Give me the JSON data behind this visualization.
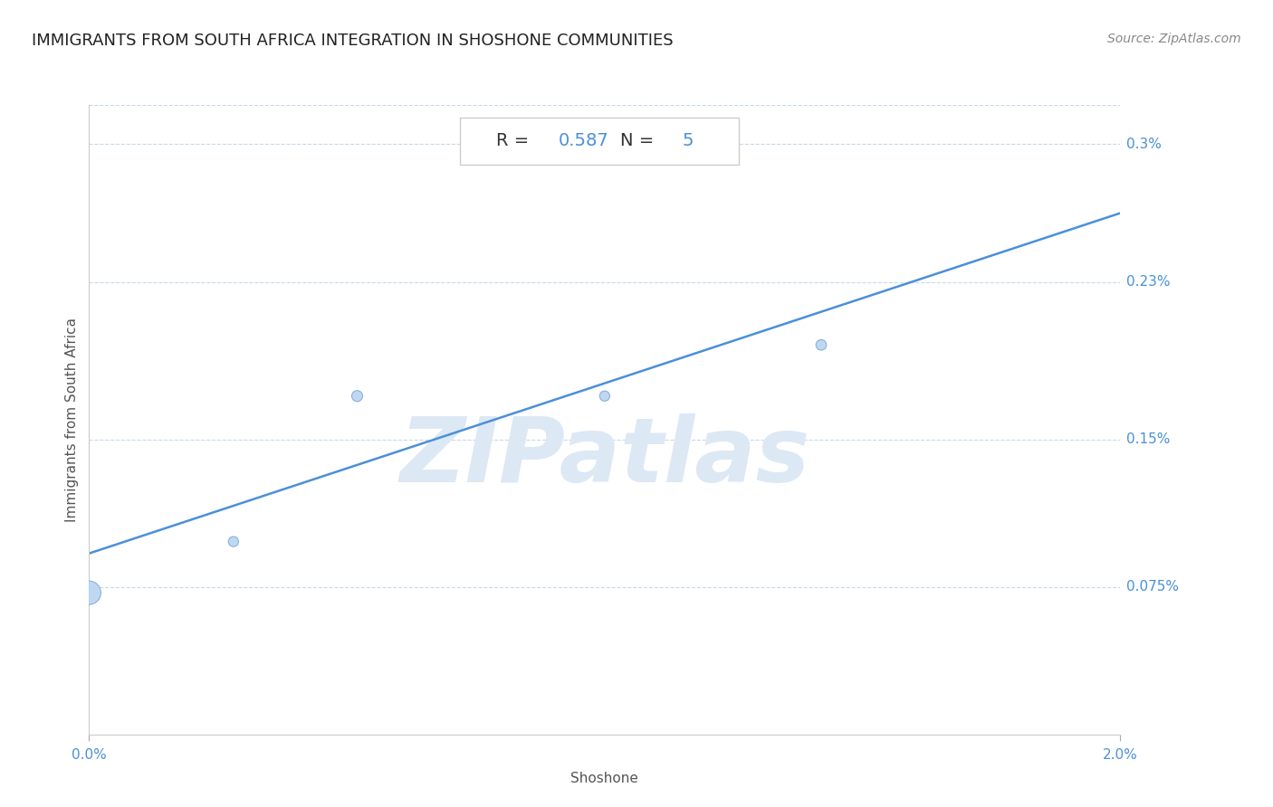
{
  "title": "IMMIGRANTS FROM SOUTH AFRICA INTEGRATION IN SHOSHONE COMMUNITIES",
  "source": "Source: ZipAtlas.com",
  "xlabel": "Shoshone",
  "ylabel": "Immigrants from South Africa",
  "R": 0.587,
  "N": 5,
  "scatter_x": [
    0.0,
    0.28,
    0.52,
    1.0,
    1.42
  ],
  "scatter_y": [
    0.072,
    0.098,
    0.172,
    0.172,
    0.198
  ],
  "scatter_sizes": [
    350,
    65,
    75,
    65,
    70
  ],
  "scatter_color": "#b8d4f0",
  "scatter_edge_color": "#80aad8",
  "line_color": "#4a90d9",
  "line_x_start": 0.0,
  "line_x_end": 2.0,
  "line_y_start": 0.092,
  "line_y_end": 0.265,
  "xlim": [
    0.0,
    2.0
  ],
  "ylim": [
    0.0,
    0.32
  ],
  "xtick_positions": [
    0.0,
    2.0
  ],
  "xtick_labels": [
    "0.0%",
    "2.0%"
  ],
  "ytick_positions": [
    0.3,
    0.23,
    0.15,
    0.075
  ],
  "ytick_labels": [
    "0.3%",
    "0.23%",
    "0.15%",
    "0.075%"
  ],
  "grid_color": "#c8d8e8",
  "background_color": "#ffffff",
  "title_color": "#222222",
  "title_fontsize": 13,
  "source_color": "#888888",
  "axis_label_color": "#555555",
  "axis_label_fontsize": 11,
  "tick_label_color": "#4a90d9",
  "tick_fontsize": 11,
  "watermark_text": "ZIPatlas",
  "watermark_color": "#dde8f5",
  "ann_r_color": "#333333",
  "ann_val_color": "#4a90d9",
  "ann_fontsize": 14
}
